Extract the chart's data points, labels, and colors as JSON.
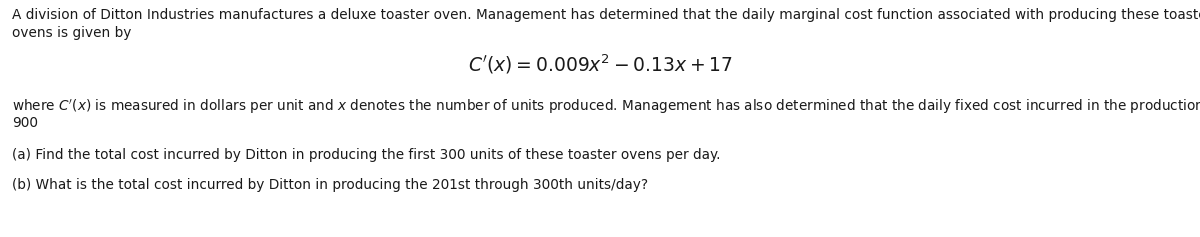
{
  "bg_color": "#ffffff",
  "text_color": "#1a1a1a",
  "line1": "A division of Ditton Industries manufactures a deluxe toaster oven. Management has determined that the daily marginal cost function associated with producing these toaster",
  "line2": "ovens is given by",
  "formula": "$C'(x) = 0.009x^2 - 0.13x + 17$",
  "line3": "where $C'(x)$ is measured in dollars per unit and $x$ denotes the number of units produced. Management has also determined that the daily fixed cost incurred in the production is",
  "line4": "900",
  "line5": "(a) Find the total cost incurred by Ditton in producing the first 300 units of these toaster ovens per day.",
  "line6": "(b) What is the total cost incurred by Ditton in producing the 201st through 300th units/day?",
  "font_size_body": 9.8,
  "font_size_formula": 13.5,
  "fig_width": 12.0,
  "fig_height": 2.37,
  "dpi": 100
}
